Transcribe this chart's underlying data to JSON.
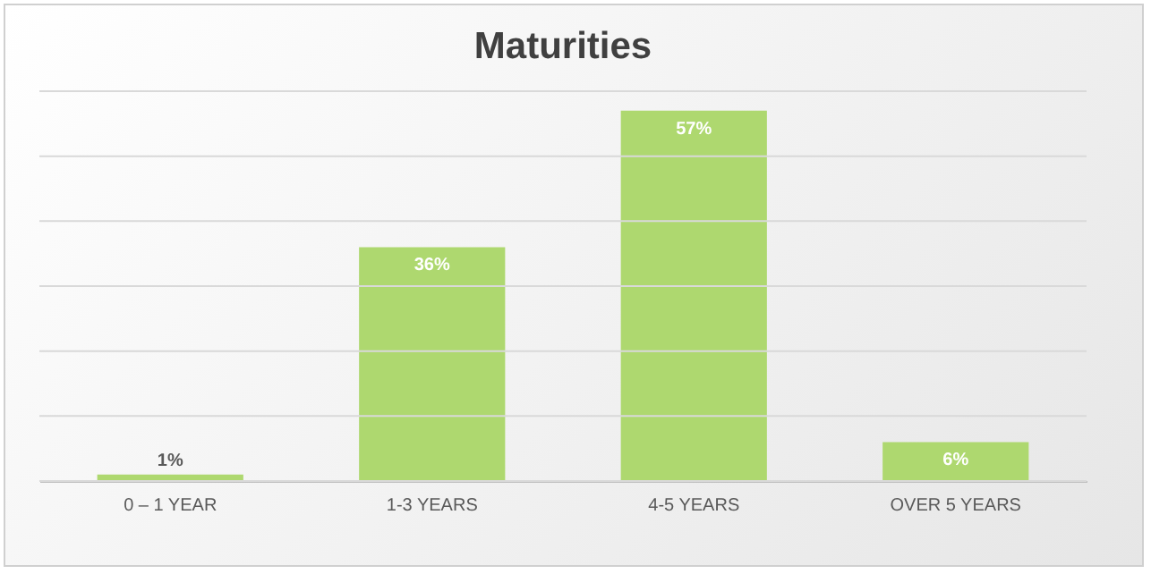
{
  "chart_data": {
    "type": "bar",
    "title": "Maturities",
    "categories": [
      "0 – 1 YEAR",
      "1-3 YEARS",
      "4-5 YEARS",
      "OVER 5 YEARS"
    ],
    "values": [
      1,
      36,
      57,
      6
    ],
    "value_labels": [
      "1%",
      "36%",
      "57%",
      "6%"
    ],
    "color": "#aed86f",
    "ylim": [
      0,
      60
    ],
    "yticks": [
      {
        "value": 0,
        "label": null
      },
      {
        "value": 10,
        "label": null
      },
      {
        "value": 20,
        "label": null
      },
      {
        "value": 30,
        "label": null
      },
      {
        "value": 40,
        "label": null
      },
      {
        "value": 50,
        "label": null
      },
      {
        "value": 60,
        "label": null
      }
    ],
    "grid": "y",
    "tick_labels": "x"
  }
}
